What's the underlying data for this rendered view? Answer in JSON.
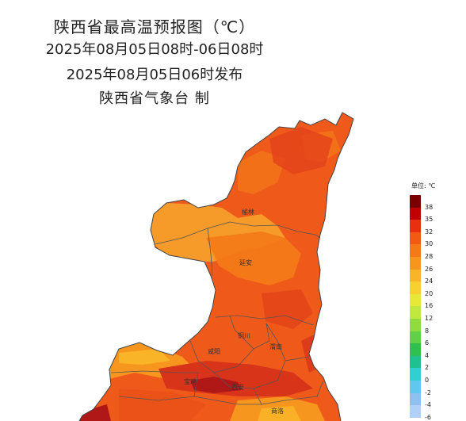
{
  "title": {
    "line1": "陕西省最高温预报图（℃）",
    "line2": "2025年08月05日08时-06日08时",
    "line3": "2025年08月05日06时发布",
    "line4": "陕西省气象台 制"
  },
  "legend": {
    "unit": "单位: ℃",
    "items": [
      {
        "label": "38",
        "color": "#7a0000"
      },
      {
        "label": "35",
        "color": "#c00000"
      },
      {
        "label": "32",
        "color": "#e83010"
      },
      {
        "label": "30",
        "color": "#f05a12"
      },
      {
        "label": "28",
        "color": "#f47a18"
      },
      {
        "label": "26",
        "color": "#f7961e"
      },
      {
        "label": "24",
        "color": "#f9b428"
      },
      {
        "label": "20",
        "color": "#f8d030"
      },
      {
        "label": "16",
        "color": "#e8e838"
      },
      {
        "label": "12",
        "color": "#c0e840"
      },
      {
        "label": "8",
        "color": "#90dc40"
      },
      {
        "label": "6",
        "color": "#60d048"
      },
      {
        "label": "4",
        "color": "#30c050"
      },
      {
        "label": "2",
        "color": "#20c090"
      },
      {
        "label": "0",
        "color": "#30d0d0"
      },
      {
        "label": "-2",
        "color": "#60c8f0"
      },
      {
        "label": "-4",
        "color": "#90c0f0"
      },
      {
        "label": "-6",
        "color": "#b0d0f8"
      }
    ]
  },
  "cities": [
    {
      "name": "榆林"
    },
    {
      "name": "延安"
    },
    {
      "name": "铜川"
    },
    {
      "name": "渭南"
    },
    {
      "name": "咸阳"
    },
    {
      "name": "宝鸡"
    },
    {
      "name": "西安"
    },
    {
      "name": "商洛"
    }
  ],
  "colors": {
    "hot_main": "#ef5a1a",
    "warm_north": "#f59e2a",
    "dark_core": "#c0201a",
    "boundary": "#555555"
  }
}
